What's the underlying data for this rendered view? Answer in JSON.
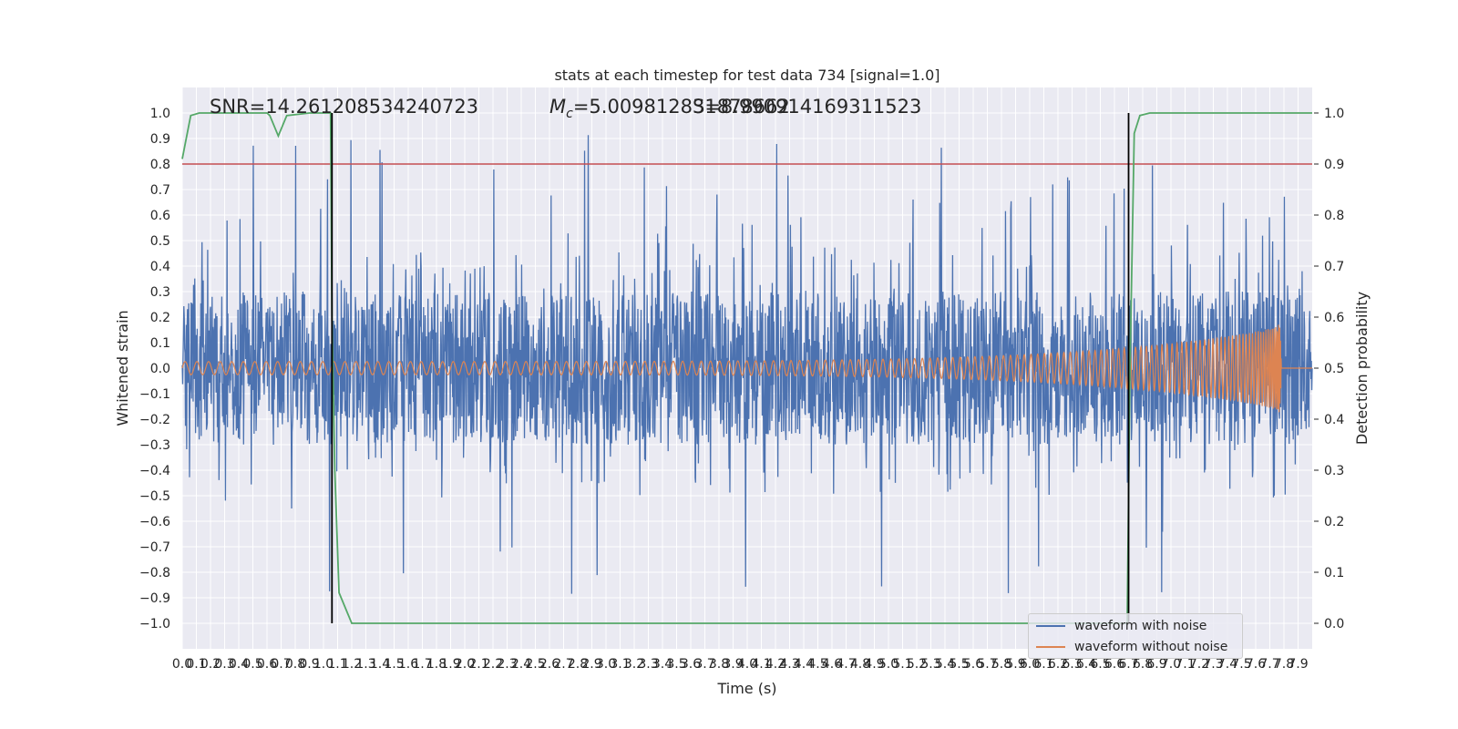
{
  "chart_data": {
    "type": "line",
    "title": "stats at each timestep for test data 734 [signal=1.0]",
    "xlabel": "Time (s)",
    "ylabel_left": "Whitened strain",
    "ylabel_right": "Detection probability",
    "xlim": [
      0.0,
      8.0
    ],
    "ylim_left": [
      -1.1,
      1.1
    ],
    "ylim_right": [
      -0.05,
      1.05
    ],
    "x_ticks": [
      "0.0",
      "0.1",
      "0.2",
      "0.3",
      "0.4",
      "0.5",
      "0.6",
      "0.7",
      "0.8",
      "0.9",
      "1.0",
      "1.1",
      "1.2",
      "1.3",
      "1.4",
      "1.5",
      "1.6",
      "1.7",
      "1.8",
      "1.9",
      "2.0",
      "2.1",
      "2.2",
      "2.3",
      "2.4",
      "2.5",
      "2.6",
      "2.7",
      "2.8",
      "2.9",
      "3.0",
      "3.1",
      "3.2",
      "3.3",
      "3.4",
      "3.5",
      "3.6",
      "3.7",
      "3.8",
      "3.9",
      "4.0",
      "4.1",
      "4.2",
      "4.3",
      "4.4",
      "4.5",
      "4.6",
      "4.7",
      "4.8",
      "4.9",
      "5.0",
      "5.1",
      "5.2",
      "5.3",
      "5.4",
      "5.5",
      "5.6",
      "5.7",
      "5.8",
      "5.9",
      "6.0",
      "6.1",
      "6.2",
      "6.3",
      "6.4",
      "6.5",
      "6.6",
      "6.7",
      "6.8",
      "6.9",
      "7.0",
      "7.1",
      "7.2",
      "7.3",
      "7.4",
      "7.5",
      "7.6",
      "7.7",
      "7.8",
      "7.9"
    ],
    "y_ticks_left": [
      "−1.0",
      "−0.9",
      "−0.8",
      "−0.7",
      "−0.6",
      "−0.5",
      "−0.4",
      "−0.3",
      "−0.2",
      "−0.1",
      "0.0",
      "0.1",
      "0.2",
      "0.3",
      "0.4",
      "0.5",
      "0.6",
      "0.7",
      "0.8",
      "0.9",
      "1.0"
    ],
    "y_ticks_right": [
      "0.0",
      "0.1",
      "0.2",
      "0.3",
      "0.4",
      "0.5",
      "0.6",
      "0.7",
      "0.8",
      "0.9",
      "1.0"
    ],
    "annotations": {
      "snr": "SNR=14.261208534240723",
      "chirp_mass_label": "M",
      "chirp_mass_sub": "c",
      "chirp_mass_value": "=5.009812831878662",
      "overlap": "S=8.990914169311523"
    },
    "threshold": {
      "value": 0.9,
      "axis": "right",
      "color": "#c44e52"
    },
    "vertical_markers_x": [
      1.06,
      6.7
    ],
    "legend": {
      "placement": "lower-right",
      "entries": [
        {
          "label": "waveform with noise",
          "color": "#4c72b0"
        },
        {
          "label": "waveform without noise",
          "color": "#dd8452"
        }
      ]
    },
    "series": [
      {
        "name": "waveform with noise",
        "axis": "left",
        "color": "#4c72b0",
        "description_type": "noisy-strain",
        "core_amplitude": 0.3,
        "peak_range": [
          -0.98,
          0.93
        ]
      },
      {
        "name": "waveform without noise",
        "axis": "left",
        "color": "#dd8452",
        "description_type": "chirp",
        "amplitude_start": 0.025,
        "amplitude_end": 0.35,
        "merger_time": 7.78,
        "post_merger_value": 0.0
      },
      {
        "name": "detection probability",
        "axis": "right",
        "color": "#55a868",
        "x": [
          0.0,
          0.06,
          0.12,
          0.18,
          0.3,
          0.45,
          0.6,
          0.62,
          0.68,
          0.74,
          0.9,
          1.05,
          1.06,
          1.08,
          1.11,
          1.2,
          2.0,
          3.0,
          4.0,
          5.0,
          6.0,
          6.65,
          6.69,
          6.71,
          6.74,
          6.78,
          6.85,
          7.2,
          7.6,
          8.0
        ],
        "y": [
          0.91,
          0.995,
          1.0,
          1.0,
          1.0,
          1.0,
          1.0,
          0.995,
          0.955,
          0.995,
          1.0,
          1.0,
          0.6,
          0.3,
          0.06,
          0.0,
          0.0,
          0.0,
          0.0,
          0.0,
          0.0,
          0.0,
          0.0,
          0.5,
          0.96,
          0.995,
          1.0,
          1.0,
          1.0,
          1.0
        ]
      }
    ]
  }
}
